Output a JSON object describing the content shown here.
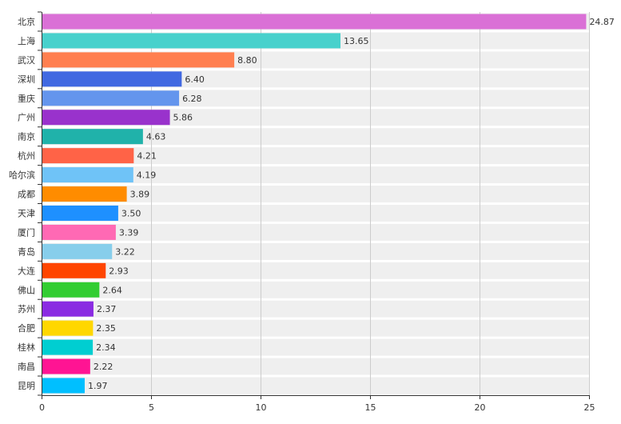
{
  "chart_data": {
    "type": "bar",
    "orientation": "horizontal",
    "title": "",
    "xlabel": "",
    "ylabel": "",
    "xlim": [
      0,
      25
    ],
    "x_ticks": [
      "0",
      "5",
      "10",
      "15",
      "20",
      "25"
    ],
    "x_tick_values": [
      0,
      5,
      10,
      15,
      20,
      25
    ],
    "grid": true,
    "legend": "none",
    "categories": [
      "北京",
      "上海",
      "武汉",
      "深圳",
      "重庆",
      "广州",
      "南京",
      "杭州",
      "哈尔滨",
      "成都",
      "天津",
      "厦门",
      "青岛",
      "大连",
      "佛山",
      "苏州",
      "合肥",
      "桂林",
      "南昌",
      "昆明"
    ],
    "values": [
      24.87,
      13.65,
      8.8,
      6.4,
      6.28,
      5.86,
      4.63,
      4.21,
      4.19,
      3.89,
      3.5,
      3.39,
      3.22,
      2.93,
      2.64,
      2.37,
      2.35,
      2.34,
      2.22,
      1.97
    ],
    "value_labels": [
      "24.87",
      "13.65",
      "8.80",
      "6.40",
      "6.28",
      "5.86",
      "4.63",
      "4.21",
      "4.19",
      "3.89",
      "3.50",
      "3.39",
      "3.22",
      "2.93",
      "2.64",
      "2.37",
      "2.35",
      "2.34",
      "2.22",
      "1.97"
    ],
    "colors": [
      "#da70d6",
      "#48d1cc",
      "#ff7f50",
      "#4169e1",
      "#6495ed",
      "#9932cc",
      "#20b2aa",
      "#ff6347",
      "#6fc3f7",
      "#ff8c00",
      "#1e90ff",
      "#ff69b4",
      "#87ceeb",
      "#ff4500",
      "#32cd32",
      "#8a2be2",
      "#ffd700",
      "#00ced1",
      "#ff1493",
      "#00bfff"
    ],
    "band_color": "#efefef",
    "grid_color": "#cccccc",
    "axis_color": "#333333"
  }
}
